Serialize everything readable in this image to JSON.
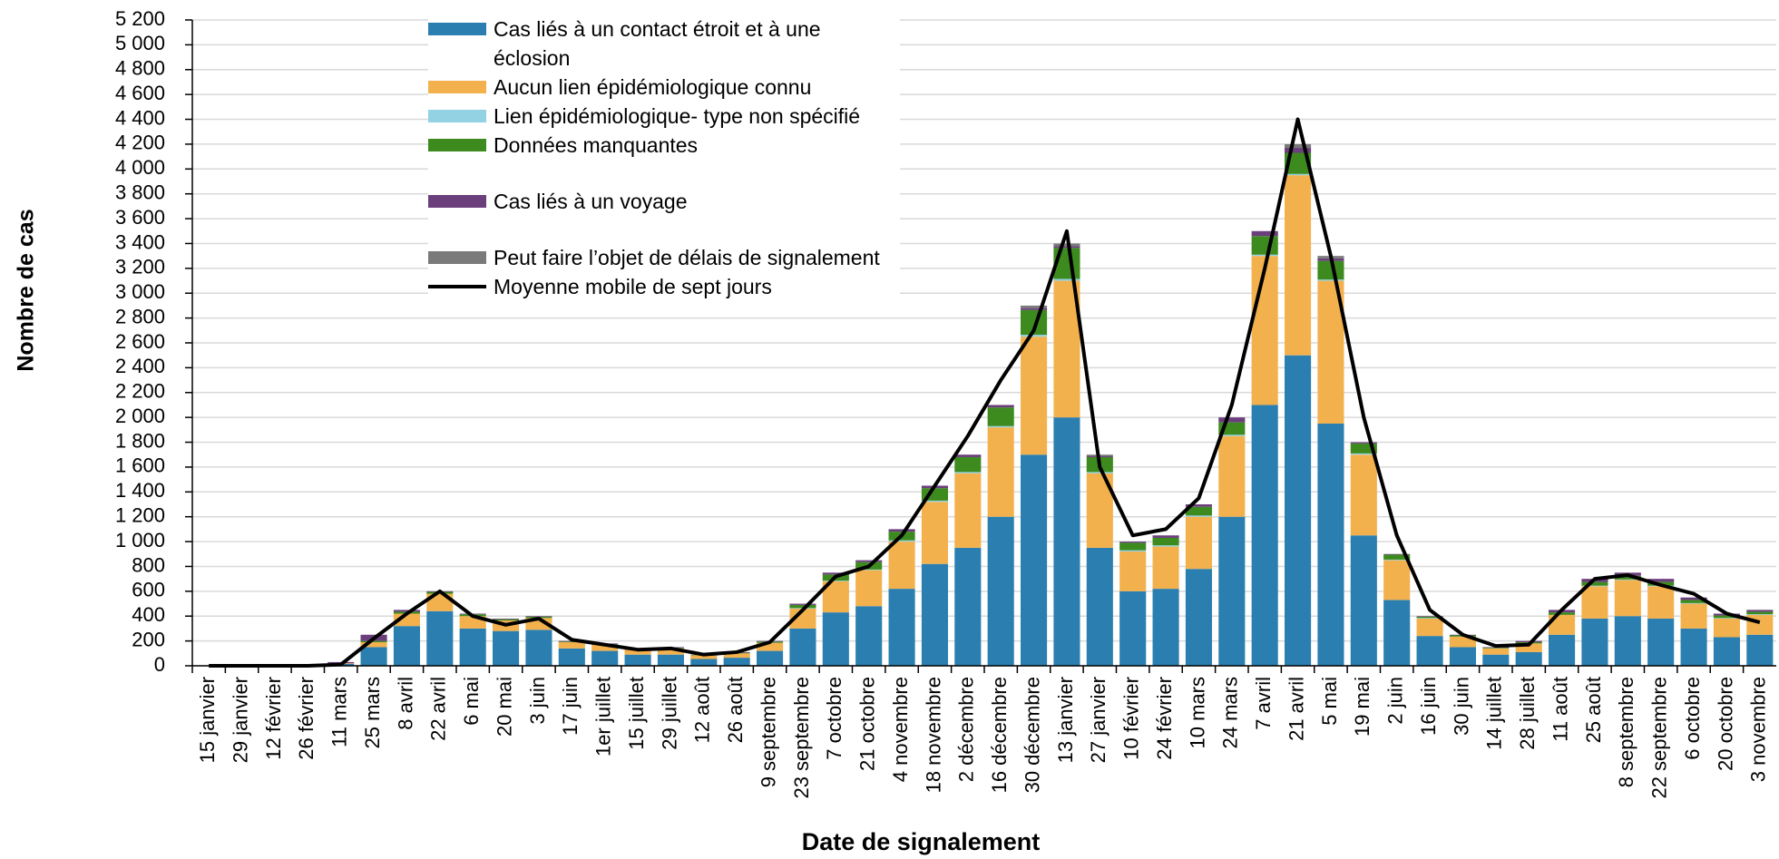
{
  "chart_data": {
    "type": "stacked-bar",
    "x_label": "Date de signalement",
    "y_label": "Nombre de cas",
    "categories": [
      "15 janvier",
      "29 janvier",
      "12 février",
      "26 février",
      "11 mars",
      "25 mars",
      "8 avril",
      "22 avril",
      "6 mai",
      "20 mai",
      "3 juin",
      "17 juin",
      "1er juillet",
      "15 juillet",
      "29 juillet",
      "12 août",
      "26 août",
      "9 septembre",
      "23 septembre",
      "7 octobre",
      "21 octobre",
      "4 novembre",
      "18 novembre",
      "2 décembre",
      "16 décembre",
      "30 décembre",
      "13 janvier",
      "27 janvier",
      "10 février",
      "24 février",
      "10 mars",
      "24 mars",
      "7 avril",
      "21 avril",
      "5 mai",
      "19 mai",
      "2 juin",
      "16 juin",
      "30 juin",
      "14 juillet",
      "28 juillet",
      "11 août",
      "25 août",
      "8 septembre",
      "22 septembre",
      "6 octobre",
      "20 octobre",
      "3 novembre"
    ],
    "series": [
      {
        "name": "Cas liés à un contact étroit et à une éclosion",
        "color": "#2a7fb0",
        "values": [
          0,
          0,
          0,
          0,
          15,
          150,
          320,
          440,
          300,
          280,
          290,
          140,
          120,
          90,
          90,
          55,
          65,
          120,
          300,
          430,
          480,
          620,
          820,
          950,
          1200,
          1700,
          2000,
          950,
          600,
          620,
          780,
          1200,
          2100,
          2500,
          1950,
          1050,
          530,
          240,
          150,
          90,
          110,
          250,
          380,
          400,
          380,
          300,
          230,
          250
        ]
      },
      {
        "name": "Aucun lien épidémiologique connu",
        "color": "#f3b14e",
        "values": [
          0,
          0,
          0,
          0,
          5,
          40,
          100,
          140,
          100,
          85,
          95,
          50,
          50,
          40,
          50,
          30,
          35,
          65,
          160,
          250,
          290,
          380,
          500,
          600,
          720,
          950,
          1100,
          600,
          320,
          340,
          420,
          650,
          1200,
          1450,
          1150,
          650,
          320,
          140,
          85,
          50,
          70,
          160,
          260,
          290,
          260,
          200,
          150,
          160
        ]
      },
      {
        "name": "Lien épidémiologique- type non spécifié",
        "color": "#92d2e3",
        "values": [
          0,
          0,
          0,
          0,
          0,
          0,
          0,
          0,
          0,
          0,
          0,
          0,
          0,
          0,
          0,
          0,
          0,
          0,
          5,
          5,
          5,
          10,
          10,
          10,
          10,
          15,
          15,
          10,
          10,
          10,
          10,
          10,
          10,
          10,
          10,
          10,
          5,
          5,
          0,
          0,
          0,
          0,
          5,
          5,
          5,
          5,
          5,
          5
        ]
      },
      {
        "name": "Données manquantes",
        "color": "#3d8b1f",
        "values": [
          0,
          0,
          0,
          0,
          0,
          10,
          15,
          15,
          15,
          10,
          10,
          5,
          5,
          5,
          5,
          3,
          5,
          10,
          25,
          50,
          60,
          70,
          100,
          120,
          150,
          200,
          250,
          120,
          60,
          60,
          70,
          100,
          150,
          170,
          150,
          80,
          40,
          10,
          10,
          5,
          10,
          20,
          30,
          30,
          30,
          25,
          20,
          20
        ]
      },
      {
        "name": "Cas liés à un voyage",
        "color": "#6b3f7c",
        "values": [
          0,
          0,
          0,
          0,
          10,
          50,
          15,
          5,
          5,
          5,
          5,
          5,
          5,
          5,
          5,
          2,
          5,
          5,
          10,
          15,
          15,
          20,
          20,
          20,
          20,
          15,
          15,
          10,
          10,
          20,
          20,
          40,
          40,
          40,
          20,
          10,
          5,
          5,
          5,
          5,
          10,
          20,
          25,
          25,
          25,
          20,
          15,
          15
        ]
      },
      {
        "name": "Peut faire l’objet de délais de signalement",
        "color": "#7a7a7a",
        "values": [
          0,
          0,
          0,
          0,
          0,
          0,
          0,
          0,
          0,
          0,
          0,
          0,
          0,
          0,
          0,
          0,
          0,
          0,
          0,
          0,
          0,
          0,
          0,
          0,
          0,
          20,
          20,
          10,
          0,
          0,
          0,
          0,
          0,
          30,
          20,
          0,
          0,
          0,
          0,
          0,
          0,
          0,
          0,
          0,
          0,
          0,
          0,
          0
        ]
      }
    ],
    "line": {
      "name": "Moyenne mobile de sept jours",
      "color": "#000000",
      "values": [
        0,
        0,
        0,
        0,
        10,
        220,
        420,
        600,
        400,
        330,
        380,
        210,
        170,
        130,
        140,
        90,
        110,
        190,
        450,
        720,
        800,
        1050,
        1450,
        1850,
        2300,
        2700,
        3500,
        1600,
        1050,
        1100,
        1350,
        2100,
        3200,
        4400,
        3300,
        2000,
        1050,
        450,
        250,
        160,
        170,
        450,
        700,
        730,
        650,
        580,
        420,
        350
      ]
    },
    "ylim": [
      0,
      5200
    ],
    "yticks": [
      0,
      200,
      400,
      600,
      800,
      {
        "value": 1000,
        "label": "1 000"
      },
      {
        "value": 1200,
        "label": "1 200"
      },
      {
        "value": 1400,
        "label": "1 400"
      },
      {
        "value": 1600,
        "label": "1 600"
      },
      {
        "value": 1800,
        "label": "1 800"
      },
      {
        "value": 2000,
        "label": "2 000"
      },
      {
        "value": 2200,
        "label": "2 200"
      },
      {
        "value": 2400,
        "label": "2 400"
      },
      {
        "value": 2600,
        "label": "2 600"
      },
      {
        "value": 2800,
        "label": "2 800"
      },
      {
        "value": 3000,
        "label": "3 000"
      },
      {
        "value": 3200,
        "label": "3 200"
      },
      {
        "value": 3400,
        "label": "3 400"
      },
      {
        "value": 3600,
        "label": "3 600"
      },
      {
        "value": 3800,
        "label": "3 800"
      },
      {
        "value": 4000,
        "label": "4 000"
      },
      {
        "value": 4200,
        "label": "4 200"
      },
      {
        "value": 4400,
        "label": "4 400"
      },
      {
        "value": 4600,
        "label": "4 600"
      },
      {
        "value": 4800,
        "label": "4 800"
      },
      {
        "value": 5000,
        "label": "5 000"
      },
      {
        "value": 5200,
        "label": "5 200"
      }
    ],
    "grid": true
  }
}
